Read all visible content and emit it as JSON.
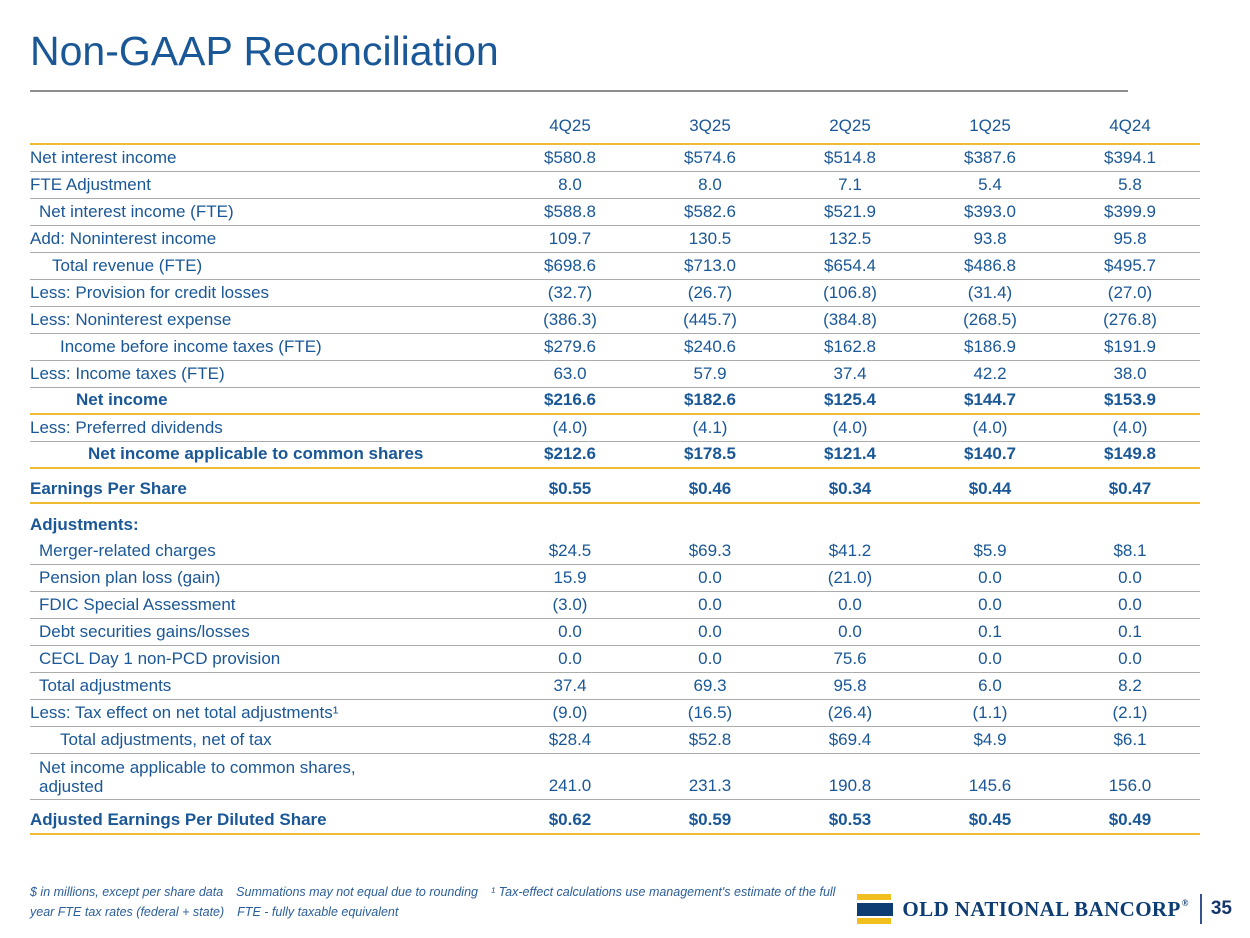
{
  "slide": {
    "title": "Non-GAAP Reconciliation",
    "page_number": "35",
    "brand": {
      "name": "OLD NATIONAL BANCORP",
      "registered_mark": "®"
    }
  },
  "footnotes": {
    "segments": [
      "$ in millions, except per share data",
      "Summations may not equal due to rounding",
      "¹ Tax-effect calculations use management's estimate of the full year FTE tax rates (federal + state)",
      "FTE - fully taxable equivalent"
    ]
  },
  "colors": {
    "text_blue": "#1A5796",
    "gold_rule": "#EEBB33",
    "gray_rule": "#ABABAB",
    "logo_navy": "#0E3D73",
    "logo_gold": "#F2C01E"
  },
  "table": {
    "columns": [
      "4Q25",
      "3Q25",
      "2Q25",
      "1Q25",
      "4Q24"
    ],
    "rows": [
      {
        "label": "Net interest income",
        "values": [
          "$580.8",
          "$574.6",
          "$514.8",
          "$387.6",
          "$394.1"
        ],
        "indent": 0,
        "bold": false,
        "rule": "gray"
      },
      {
        "label": "FTE Adjustment",
        "values": [
          "8.0",
          "8.0",
          "7.1",
          "5.4",
          "5.8"
        ],
        "indent": 0,
        "bold": false,
        "rule": "gray"
      },
      {
        "label": "Net interest income (FTE)",
        "values": [
          "$588.8",
          "$582.6",
          "$521.9",
          "$393.0",
          "$399.9"
        ],
        "indent": 1,
        "bold": false,
        "rule": "gray"
      },
      {
        "label": "Add: Noninterest income",
        "values": [
          "109.7",
          "130.5",
          "132.5",
          "93.8",
          "95.8"
        ],
        "indent": 0,
        "bold": false,
        "rule": "gray"
      },
      {
        "label": "Total revenue (FTE)",
        "values": [
          "$698.6",
          "$713.0",
          "$654.4",
          "$486.8",
          "$495.7"
        ],
        "indent": 2,
        "bold": false,
        "rule": "gray"
      },
      {
        "label": "Less: Provision for credit losses",
        "values": [
          "(32.7)",
          "(26.7)",
          "(106.8)",
          "(31.4)",
          "(27.0)"
        ],
        "indent": 0,
        "bold": false,
        "rule": "gray"
      },
      {
        "label": "Less: Noninterest expense",
        "values": [
          "(386.3)",
          "(445.7)",
          "(384.8)",
          "(268.5)",
          "(276.8)"
        ],
        "indent": 0,
        "bold": false,
        "rule": "gray"
      },
      {
        "label": "Income before income taxes (FTE)",
        "values": [
          "$279.6",
          "$240.6",
          "$162.8",
          "$186.9",
          "$191.9"
        ],
        "indent": 3,
        "bold": false,
        "rule": "gray"
      },
      {
        "label": "Less: Income taxes (FTE)",
        "values": [
          "63.0",
          "57.9",
          "37.4",
          "42.2",
          "38.0"
        ],
        "indent": 0,
        "bold": false,
        "rule": "gray"
      },
      {
        "label": "Net income",
        "values": [
          "$216.6",
          "$182.6",
          "$125.4",
          "$144.7",
          "$153.9"
        ],
        "indent": 4,
        "bold": true,
        "rule": "gold"
      },
      {
        "label": "Less: Preferred dividends",
        "values": [
          "(4.0)",
          "(4.1)",
          "(4.0)",
          "(4.0)",
          "(4.0)"
        ],
        "indent": 0,
        "bold": false,
        "rule": "gray"
      },
      {
        "label": "Net income applicable to common shares",
        "values": [
          "$212.6",
          "$178.5",
          "$121.4",
          "$140.7",
          "$149.8"
        ],
        "indent": 5,
        "bold": true,
        "rule": "gold"
      },
      {
        "label": "Earnings Per Share",
        "values": [
          "$0.55",
          "$0.46",
          "$0.34",
          "$0.44",
          "$0.47"
        ],
        "indent": 0,
        "bold": true,
        "rule": "gold",
        "kind": "eps"
      },
      {
        "label": "Adjustments:",
        "values": [],
        "indent": 0,
        "bold": true,
        "rule": "none",
        "kind": "section"
      },
      {
        "label": "Merger-related charges",
        "values": [
          "$24.5",
          "$69.3",
          "$41.2",
          "$5.9",
          "$8.1"
        ],
        "indent": 1,
        "bold": false,
        "rule": "gray"
      },
      {
        "label": "Pension plan loss (gain)",
        "values": [
          "15.9",
          "0.0",
          "(21.0)",
          "0.0",
          "0.0"
        ],
        "indent": 1,
        "bold": false,
        "rule": "gray"
      },
      {
        "label": "FDIC Special Assessment",
        "values": [
          "(3.0)",
          "0.0",
          "0.0",
          "0.0",
          "0.0"
        ],
        "indent": 1,
        "bold": false,
        "rule": "gray"
      },
      {
        "label": "Debt securities gains/losses",
        "values": [
          "0.0",
          "0.0",
          "0.0",
          "0.1",
          "0.1"
        ],
        "indent": 1,
        "bold": false,
        "rule": "gray"
      },
      {
        "label": "CECL Day 1 non-PCD provision",
        "values": [
          "0.0",
          "0.0",
          "75.6",
          "0.0",
          "0.0"
        ],
        "indent": 1,
        "bold": false,
        "rule": "gray"
      },
      {
        "label": "Total adjustments",
        "values": [
          "37.4",
          "69.3",
          "95.8",
          "6.0",
          "8.2"
        ],
        "indent": 1,
        "bold": false,
        "rule": "gray"
      },
      {
        "label": "Less: Tax effect on net total adjustments¹",
        "values": [
          "(9.0)",
          "(16.5)",
          "(26.4)",
          "(1.1)",
          "(2.1)"
        ],
        "indent": 0,
        "bold": false,
        "rule": "gray"
      },
      {
        "label": "Total adjustments, net of tax",
        "values": [
          "$28.4",
          "$52.8",
          "$69.4",
          "$4.9",
          "$6.1"
        ],
        "indent": 3,
        "bold": false,
        "rule": "gray"
      },
      {
        "label": "Net income applicable to common shares,\nadjusted",
        "values": [
          "241.0",
          "231.3",
          "190.8",
          "145.6",
          "156.0"
        ],
        "indent": 1,
        "bold": false,
        "rule": "gray",
        "kind": "twoline"
      },
      {
        "label": "Adjusted Earnings Per Diluted Share",
        "values": [
          "$0.62",
          "$0.59",
          "$0.53",
          "$0.45",
          "$0.49"
        ],
        "indent": 0,
        "bold": true,
        "rule": "gold",
        "kind": "eps"
      }
    ]
  }
}
